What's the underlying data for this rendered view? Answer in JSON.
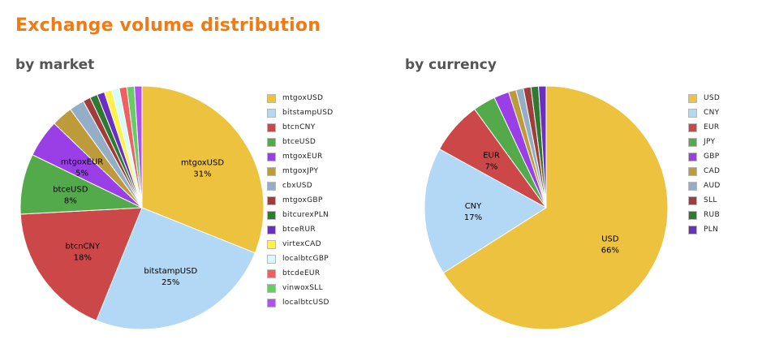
{
  "page": {
    "title": "Exchange volume distribution"
  },
  "chart_data": [
    {
      "type": "pie",
      "title": "by market",
      "legend_position": "right",
      "slices": [
        {
          "name": "mtgoxUSD",
          "value": 31,
          "color": "#ecc23f",
          "label": "mtgoxUSD",
          "pct_label": "31%"
        },
        {
          "name": "bitstampUSD",
          "value": 25,
          "color": "#b3d8f6",
          "label": "bitstampUSD",
          "pct_label": "25%"
        },
        {
          "name": "btcnCNY",
          "value": 18,
          "color": "#cc4848",
          "label": "btcnCNY",
          "pct_label": "18%"
        },
        {
          "name": "btceUSD",
          "value": 8,
          "color": "#52aa4a",
          "label": "btceUSD",
          "pct_label": "8%"
        },
        {
          "name": "mtgoxEUR",
          "value": 5,
          "color": "#9a3fe6",
          "label": "mtgoxEUR",
          "pct_label": "5%"
        },
        {
          "name": "mtgoxJPY",
          "value": 2.8,
          "color": "#bd9b3a",
          "label": "",
          "pct_label": ""
        },
        {
          "name": "cbxUSD",
          "value": 2.0,
          "color": "#93aec6",
          "label": "",
          "pct_label": ""
        },
        {
          "name": "mtgoxGBP",
          "value": 1.0,
          "color": "#a03c3c",
          "label": "",
          "pct_label": ""
        },
        {
          "name": "bitcurexPLN",
          "value": 1.0,
          "color": "#2f7a2f",
          "label": "",
          "pct_label": ""
        },
        {
          "name": "btceRUR",
          "value": 1.0,
          "color": "#6b2fc0",
          "label": "",
          "pct_label": ""
        },
        {
          "name": "virtexCAD",
          "value": 1.0,
          "color": "#fff04a",
          "label": "",
          "pct_label": ""
        },
        {
          "name": "localbtcGBP",
          "value": 1.0,
          "color": "#d6fbfb",
          "label": "",
          "pct_label": ""
        },
        {
          "name": "btcdeEUR",
          "value": 1.0,
          "color": "#f06060",
          "label": "",
          "pct_label": ""
        },
        {
          "name": "vinwoxSLL",
          "value": 1.0,
          "color": "#66cc66",
          "label": "",
          "pct_label": ""
        },
        {
          "name": "localbtcUSD",
          "value": 1.0,
          "color": "#b050f0",
          "label": "",
          "pct_label": ""
        }
      ]
    },
    {
      "type": "pie",
      "title": "by currency",
      "legend_position": "right",
      "slices": [
        {
          "name": "USD",
          "value": 66,
          "color": "#ecc23f",
          "label": "USD",
          "pct_label": "66%"
        },
        {
          "name": "CNY",
          "value": 17,
          "color": "#b3d8f6",
          "label": "CNY",
          "pct_label": "17%"
        },
        {
          "name": "EUR",
          "value": 7,
          "color": "#cc4848",
          "label": "EUR",
          "pct_label": "7%"
        },
        {
          "name": "JPY",
          "value": 3.0,
          "color": "#52aa4a",
          "label": "",
          "pct_label": ""
        },
        {
          "name": "GBP",
          "value": 2.0,
          "color": "#9a3fe6",
          "label": "",
          "pct_label": ""
        },
        {
          "name": "CAD",
          "value": 1.0,
          "color": "#bd9b3a",
          "label": "",
          "pct_label": ""
        },
        {
          "name": "AUD",
          "value": 1.0,
          "color": "#93aec6",
          "label": "",
          "pct_label": ""
        },
        {
          "name": "SLL",
          "value": 1.0,
          "color": "#a03c3c",
          "label": "",
          "pct_label": ""
        },
        {
          "name": "RUB",
          "value": 1.0,
          "color": "#2f7a2f",
          "label": "",
          "pct_label": ""
        },
        {
          "name": "PLN",
          "value": 1.0,
          "color": "#6b2fc0",
          "label": "",
          "pct_label": ""
        }
      ]
    }
  ]
}
